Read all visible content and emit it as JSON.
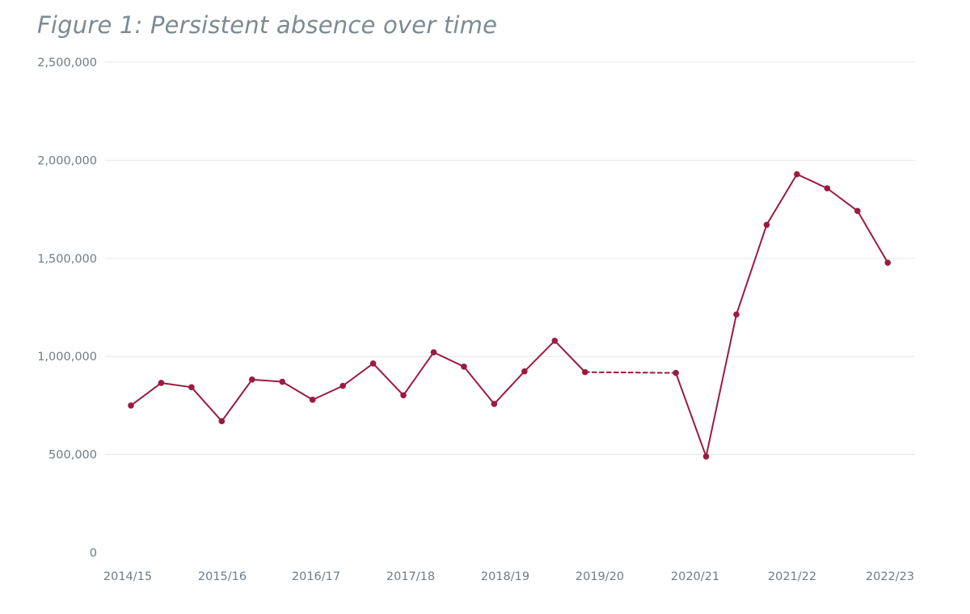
{
  "chart_data": {
    "type": "line",
    "title": "Figure 1: Persistent absence over time",
    "xlabel": "",
    "ylabel": "",
    "ylim": [
      0,
      2500000
    ],
    "yticks": [
      0,
      500000,
      1000000,
      1500000,
      2000000,
      2500000
    ],
    "ytick_labels": [
      "0",
      "500,000",
      "1,000,000",
      "1,500,000",
      "2,000,000",
      "2,500,000"
    ],
    "xtick_labels": [
      "2014/15",
      "2015/16",
      "2016/17",
      "2017/18",
      "2018/19",
      "2019/20",
      "2020/21",
      "2021/22",
      "2022/23"
    ],
    "grid": true,
    "legend": "none",
    "line_color": "#9b1b3f",
    "series": [
      {
        "values": [
          750000,
          865000,
          843000,
          670000,
          882000,
          871000,
          779000,
          850000,
          964000,
          802000,
          1021000,
          948000,
          758000,
          924000,
          1080000,
          920000,
          null,
          null,
          916000,
          490000,
          1214000,
          1671000,
          1929000,
          1857000,
          1742000,
          1478000
        ],
        "gap_style": "dashed"
      }
    ]
  }
}
